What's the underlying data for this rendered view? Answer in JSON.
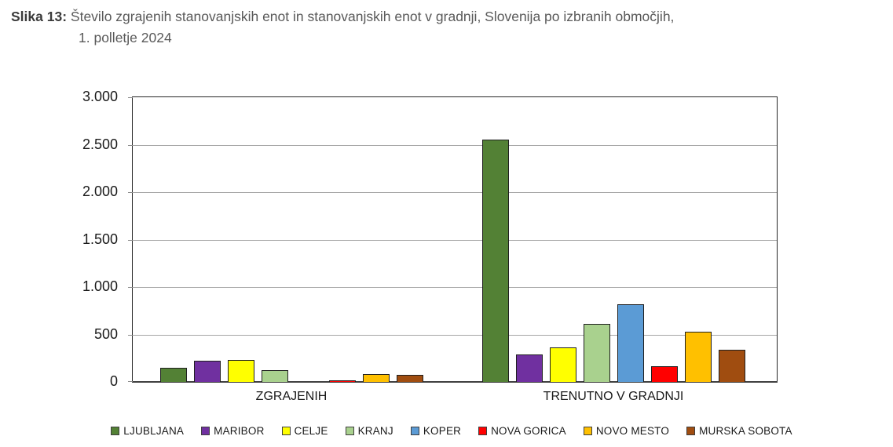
{
  "figure": {
    "label": "Slika 13:",
    "title_line1": "Število zgrajenih stanovanjskih enot in stanovanjskih enot v gradnji, Slovenija po izbranih območjih,",
    "title_line2": "1. polletje 2024"
  },
  "chart_data": {
    "type": "bar",
    "categories": [
      "ZGRAJENIH",
      "TRENUTNO V GRADNJI"
    ],
    "series": [
      {
        "name": "LJUBLJANA",
        "color": "#538135",
        "values": [
          150,
          2550
        ]
      },
      {
        "name": "MARIBOR",
        "color": "#7030A0",
        "values": [
          225,
          290
        ]
      },
      {
        "name": "CELJE",
        "color": "#FFFF00",
        "values": [
          230,
          360
        ]
      },
      {
        "name": "KRANJ",
        "color": "#A9D18E",
        "values": [
          125,
          610
        ]
      },
      {
        "name": "KOPER",
        "color": "#5B9BD5",
        "values": [
          0,
          820
        ]
      },
      {
        "name": "NOVA GORICA",
        "color": "#FF0000",
        "values": [
          15,
          165
        ]
      },
      {
        "name": "NOVO MESTO",
        "color": "#FFC000",
        "values": [
          80,
          525
        ]
      },
      {
        "name": "MURSKA SOBOTA",
        "color": "#A04D10",
        "values": [
          75,
          335
        ]
      }
    ],
    "ylabel": "",
    "xlabel": "",
    "ylim": [
      0,
      3000
    ],
    "ytick_step": 500,
    "ytick_labels": [
      "0",
      "500",
      "1.000",
      "1.500",
      "2.000",
      "2.500",
      "3.000"
    ],
    "grid": true,
    "legend_position": "bottom",
    "colors": {
      "gridline": "#a6a6a6",
      "plot_border": "#262626",
      "axis_line": "#404040",
      "bar_border": "#1f1f1f",
      "title_label": "#3b3b3b",
      "title_text": "#595959",
      "tick_text": "#1a1a1a"
    }
  }
}
